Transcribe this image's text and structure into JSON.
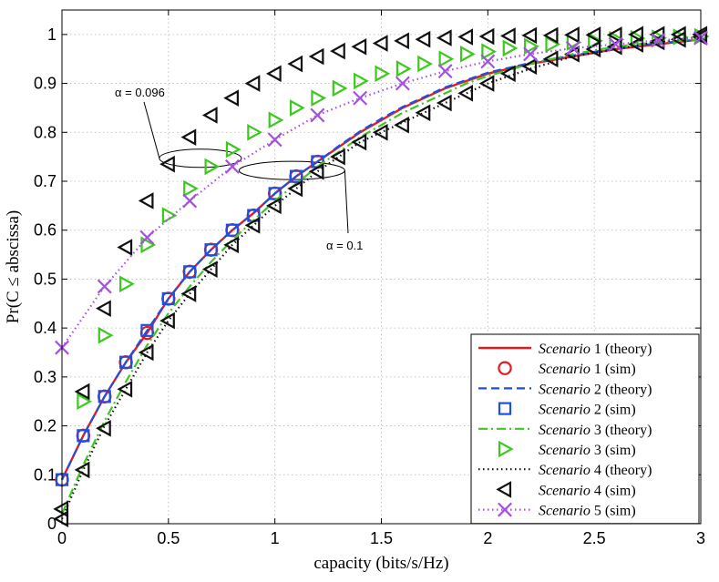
{
  "chart_data": {
    "type": "line",
    "title": "",
    "xlabel": "capacity (bits/s/Hz)",
    "ylabel": "Pr(C ≤ abscissa)",
    "xlim": [
      0,
      3
    ],
    "ylim": [
      0,
      1.05
    ],
    "x_ticks": [
      "0",
      "0.5",
      "1",
      "1.5",
      "2",
      "2.5",
      "3"
    ],
    "y_ticks": [
      "0",
      "0.1",
      "0.2",
      "0.3",
      "0.4",
      "0.5",
      "0.6",
      "0.7",
      "0.8",
      "0.9",
      "1"
    ],
    "grid": true,
    "legend_position": "bottom-right",
    "series": [
      {
        "name": "Scenario 1 (theory)",
        "scenario": "Scenario",
        "suffix": "1 (theory)",
        "kind": "line",
        "color": "#e8191c",
        "dash": "solid",
        "x": [
          0,
          0.1,
          0.2,
          0.3,
          0.4,
          0.5,
          0.6,
          0.7,
          0.8,
          0.9,
          1.0,
          1.1,
          1.2,
          1.3,
          1.4,
          1.5,
          1.6,
          1.7,
          1.8,
          1.9,
          2.0,
          2.2,
          2.4,
          2.6,
          2.8,
          3.0
        ],
        "y": [
          0.09,
          0.18,
          0.26,
          0.33,
          0.39,
          0.46,
          0.515,
          0.56,
          0.6,
          0.635,
          0.675,
          0.71,
          0.74,
          0.77,
          0.8,
          0.825,
          0.85,
          0.87,
          0.89,
          0.905,
          0.92,
          0.94,
          0.955,
          0.97,
          0.98,
          0.99
        ]
      },
      {
        "name": "Scenario 1 (sim)",
        "scenario": "Scenario",
        "suffix": "1 (sim)",
        "kind": "marker",
        "marker": "circle",
        "color": "#e8191c",
        "x": [
          0,
          0.1,
          0.2,
          0.3,
          0.4,
          0.5,
          0.6,
          0.7,
          0.8,
          0.9,
          1.0,
          1.1,
          1.2
        ],
        "y": [
          0.09,
          0.18,
          0.26,
          0.33,
          0.39,
          0.46,
          0.515,
          0.56,
          0.6,
          0.63,
          0.675,
          0.71,
          0.74
        ]
      },
      {
        "name": "Scenario 2 (theory)",
        "scenario": "Scenario",
        "suffix": "2 (theory)",
        "kind": "line",
        "color": "#1f4fe0",
        "dash": "dashed",
        "x": [
          0,
          0.1,
          0.2,
          0.3,
          0.4,
          0.5,
          0.6,
          0.7,
          0.8,
          0.9,
          1.0,
          1.1,
          1.2,
          1.3,
          1.4,
          1.5,
          1.6,
          1.7,
          1.8,
          1.9,
          2.0,
          2.2,
          2.4,
          2.6,
          2.8,
          3.0
        ],
        "y": [
          0.09,
          0.18,
          0.26,
          0.33,
          0.395,
          0.46,
          0.515,
          0.56,
          0.6,
          0.635,
          0.675,
          0.71,
          0.74,
          0.772,
          0.802,
          0.828,
          0.852,
          0.872,
          0.892,
          0.907,
          0.922,
          0.942,
          0.957,
          0.972,
          0.982,
          0.99
        ]
      },
      {
        "name": "Scenario 2 (sim)",
        "scenario": "Scenario",
        "suffix": "2 (sim)",
        "kind": "marker",
        "marker": "square",
        "color": "#1f4fe0",
        "x": [
          0,
          0.1,
          0.2,
          0.3,
          0.4,
          0.5,
          0.6,
          0.7,
          0.8,
          0.9,
          1.0,
          1.1,
          1.2
        ],
        "y": [
          0.09,
          0.18,
          0.26,
          0.33,
          0.395,
          0.46,
          0.515,
          0.56,
          0.6,
          0.63,
          0.675,
          0.71,
          0.74
        ]
      },
      {
        "name": "Scenario 3 (theory)",
        "scenario": "Scenario",
        "suffix": "3 (theory)",
        "kind": "line",
        "color": "#3cc81e",
        "dash": "dashdot",
        "x": [
          0,
          0.1,
          0.2,
          0.3,
          0.4,
          0.5,
          0.6,
          0.7,
          0.8,
          0.9,
          1.0,
          1.1,
          1.2,
          1.3,
          1.4,
          1.5,
          1.6,
          1.7,
          1.8,
          1.9,
          2.0,
          2.2,
          2.4,
          2.6,
          2.8,
          3.0
        ],
        "y": [
          0.02,
          0.12,
          0.21,
          0.29,
          0.365,
          0.43,
          0.485,
          0.535,
          0.58,
          0.62,
          0.66,
          0.695,
          0.73,
          0.76,
          0.79,
          0.815,
          0.84,
          0.86,
          0.88,
          0.9,
          0.915,
          0.94,
          0.96,
          0.975,
          0.985,
          0.99
        ]
      },
      {
        "name": "Scenario 3 (sim)",
        "scenario": "Scenario",
        "suffix": "3 (sim)",
        "kind": "marker",
        "marker": "triangle-right",
        "color": "#3cc81e",
        "x": [
          0.1,
          0.2,
          0.3,
          0.4,
          0.5,
          0.6,
          0.7,
          0.8,
          0.9,
          1.0,
          1.1,
          1.2,
          1.3,
          1.4,
          1.5,
          1.6,
          1.7,
          1.8,
          1.9,
          2.0,
          2.1,
          2.2,
          2.3,
          2.4,
          2.5,
          2.6,
          2.7,
          2.8,
          2.9,
          3.0
        ],
        "y": [
          0.25,
          0.385,
          0.49,
          0.57,
          0.63,
          0.685,
          0.73,
          0.765,
          0.8,
          0.825,
          0.85,
          0.87,
          0.89,
          0.905,
          0.92,
          0.93,
          0.94,
          0.95,
          0.96,
          0.965,
          0.972,
          0.976,
          0.98,
          0.984,
          0.987,
          0.99,
          0.992,
          0.993,
          0.995,
          0.996
        ]
      },
      {
        "name": "Scenario 4 (theory)",
        "scenario": "Scenario",
        "suffix": "4 (theory)",
        "kind": "line",
        "color": "#111111",
        "dash": "dotted",
        "x": [
          0,
          0.1,
          0.2,
          0.3,
          0.4,
          0.5,
          0.6,
          0.7,
          0.8,
          0.9,
          1.0,
          1.1,
          1.2,
          1.3,
          1.4,
          1.5,
          1.6,
          1.7,
          1.8,
          1.9,
          2.0,
          2.2,
          2.4,
          2.6,
          2.8,
          3.0
        ],
        "y": [
          0.01,
          0.11,
          0.2,
          0.275,
          0.35,
          0.415,
          0.47,
          0.52,
          0.57,
          0.61,
          0.65,
          0.685,
          0.72,
          0.75,
          0.78,
          0.8,
          0.82,
          0.84,
          0.86,
          0.88,
          0.9,
          0.93,
          0.955,
          0.97,
          0.985,
          0.995
        ]
      },
      {
        "name": "Scenario 4 (sim)",
        "scenario": "Scenario",
        "suffix": "4 (sim)",
        "kind": "marker",
        "marker": "triangle-left",
        "color": "#111111",
        "x": [
          0,
          0.1,
          0.2,
          0.3,
          0.4,
          0.5,
          0.6,
          0.7,
          0.8,
          0.9,
          1.0,
          1.1,
          1.2,
          1.3,
          1.4,
          1.5,
          1.6,
          1.7,
          1.8,
          1.9,
          2.0,
          2.1,
          2.2,
          2.3,
          2.4,
          2.5,
          2.6,
          2.7,
          2.8,
          2.9,
          3.0
        ],
        "y": [
          0.03,
          0.27,
          0.44,
          0.565,
          0.66,
          0.735,
          0.79,
          0.835,
          0.87,
          0.9,
          0.92,
          0.94,
          0.955,
          0.966,
          0.975,
          0.982,
          0.987,
          0.99,
          0.993,
          0.995,
          0.996,
          0.997,
          0.998,
          0.998,
          0.999,
          0.999,
          0.999,
          1.0,
          1.0,
          1.0,
          1.0
        ]
      },
      {
        "name": "Scenario 4 (sim) lower curve",
        "kind": "marker",
        "marker": "triangle-left",
        "color": "#111111",
        "legend": false,
        "x": [
          0,
          0.1,
          0.2,
          0.3,
          0.4,
          0.5,
          0.6,
          0.7,
          0.8,
          0.9,
          1.0,
          1.1,
          1.2,
          1.3,
          1.4,
          1.5,
          1.6,
          1.7,
          1.8,
          1.9,
          2.0,
          2.1,
          2.2,
          2.3,
          2.4,
          2.5,
          2.6,
          2.7,
          2.8,
          2.9,
          3.0
        ],
        "y": [
          0.01,
          0.11,
          0.195,
          0.275,
          0.35,
          0.415,
          0.47,
          0.52,
          0.57,
          0.61,
          0.65,
          0.685,
          0.72,
          0.75,
          0.78,
          0.8,
          0.815,
          0.84,
          0.86,
          0.88,
          0.9,
          0.92,
          0.935,
          0.95,
          0.96,
          0.97,
          0.975,
          0.98,
          0.985,
          0.99,
          0.995
        ]
      },
      {
        "name": "Scenario 5 (sim)",
        "scenario": "Scenario",
        "suffix": "5 (sim)",
        "kind": "both",
        "marker": "x",
        "color": "#a64fe6",
        "dash": "dotted",
        "x": [
          0,
          0.2,
          0.4,
          0.6,
          0.8,
          1.0,
          1.2,
          1.4,
          1.6,
          1.8,
          2.0,
          2.2,
          2.4,
          2.6,
          2.8,
          3.0
        ],
        "y": [
          0.36,
          0.485,
          0.585,
          0.66,
          0.73,
          0.785,
          0.835,
          0.87,
          0.9,
          0.925,
          0.945,
          0.96,
          0.972,
          0.98,
          0.988,
          0.993
        ]
      }
    ],
    "annotations": [
      {
        "text": "α = 0.096",
        "x": 0.5,
        "y": 0.745
      },
      {
        "text": "α = 0.1",
        "x": 1.13,
        "y": 0.72
      }
    ]
  }
}
